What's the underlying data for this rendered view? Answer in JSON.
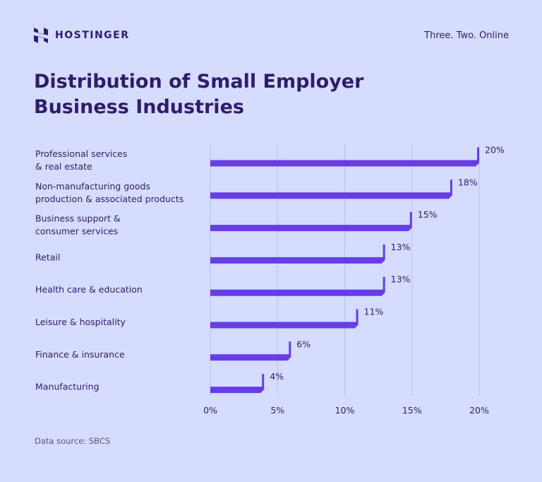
{
  "brand": {
    "name": "HOSTINGER",
    "tagline": "Three. Two. Online"
  },
  "source": "Data source: SBCS",
  "colors": {
    "bar": "#673de6",
    "text": "#2f1c6a",
    "background": "#d5dcfe",
    "grid": "#b9c0fb"
  },
  "chart_data": {
    "type": "bar",
    "orientation": "horizontal",
    "title": "Distribution of Small Employer Business Industries",
    "categories": [
      [
        "Professional services",
        "& real estate"
      ],
      [
        "Non-manufacturing goods",
        "production & associated products"
      ],
      [
        "Business support &",
        "consumer services"
      ],
      [
        "Retail"
      ],
      [
        "Health care & education"
      ],
      [
        "Leisure & hospitality"
      ],
      [
        "Finance & insurance"
      ],
      [
        "Manufacturing"
      ]
    ],
    "values": [
      20,
      18,
      15,
      13,
      13,
      11,
      6,
      4
    ],
    "data_labels": [
      "20%",
      "18%",
      "15%",
      "13%",
      "13%",
      "11%",
      "6%",
      "4%"
    ],
    "xlim": [
      0,
      20
    ],
    "xticks": [
      0,
      5,
      10,
      15,
      20
    ],
    "xtick_labels": [
      "0%",
      "5%",
      "10%",
      "15%",
      "20%"
    ],
    "grid": true
  }
}
